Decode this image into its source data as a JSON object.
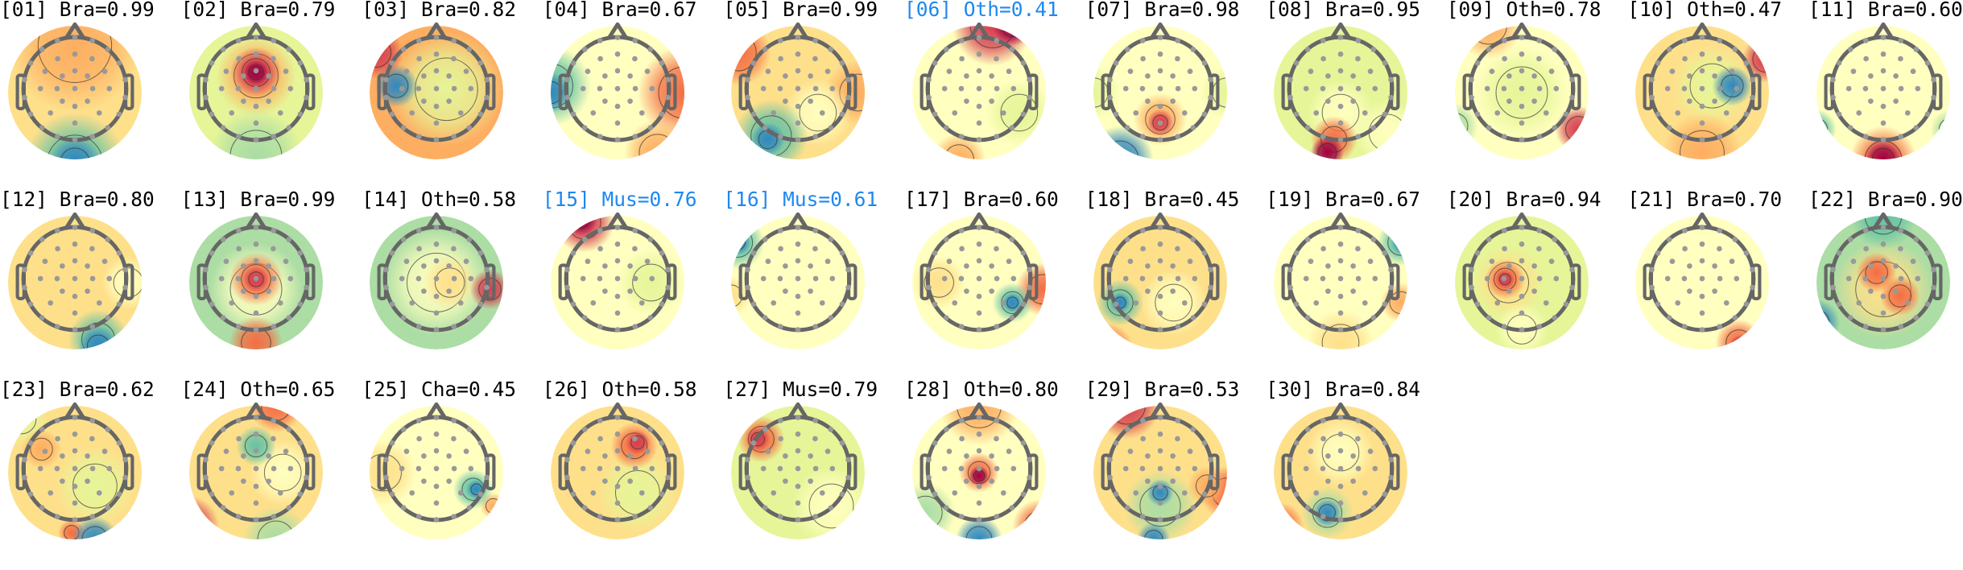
{
  "chart_data": {
    "type": "heatmap",
    "colormap": "Spectral_r",
    "highlight_color": "#1e88f0",
    "components": [
      {
        "title": "[01] Bra=0.99",
        "label": "Bra",
        "prob": 0.99,
        "highlighted": false
      },
      {
        "title": "[02] Bra=0.79",
        "label": "Bra",
        "prob": 0.79,
        "highlighted": false
      },
      {
        "title": "[03] Bra=0.82",
        "label": "Bra",
        "prob": 0.82,
        "highlighted": false
      },
      {
        "title": "[04] Bra=0.67",
        "label": "Bra",
        "prob": 0.67,
        "highlighted": false
      },
      {
        "title": "[05] Bra=0.99",
        "label": "Bra",
        "prob": 0.99,
        "highlighted": false
      },
      {
        "title": "[06] Oth=0.41",
        "label": "Oth",
        "prob": 0.41,
        "highlighted": true
      },
      {
        "title": "[07] Bra=0.98",
        "label": "Bra",
        "prob": 0.98,
        "highlighted": false
      },
      {
        "title": "[08] Bra=0.95",
        "label": "Bra",
        "prob": 0.95,
        "highlighted": false
      },
      {
        "title": "[09] Oth=0.78",
        "label": "Oth",
        "prob": 0.78,
        "highlighted": false
      },
      {
        "title": "[10] Oth=0.47",
        "label": "Oth",
        "prob": 0.47,
        "highlighted": false
      },
      {
        "title": "[11] Bra=0.60",
        "label": "Bra",
        "prob": 0.6,
        "highlighted": false
      },
      {
        "title": "[12] Bra=0.80",
        "label": "Bra",
        "prob": 0.8,
        "highlighted": false
      },
      {
        "title": "[13] Bra=0.99",
        "label": "Bra",
        "prob": 0.99,
        "highlighted": false
      },
      {
        "title": "[14] Oth=0.58",
        "label": "Oth",
        "prob": 0.58,
        "highlighted": false
      },
      {
        "title": "[15] Mus=0.76",
        "label": "Mus",
        "prob": 0.76,
        "highlighted": true
      },
      {
        "title": "[16] Mus=0.61",
        "label": "Mus",
        "prob": 0.61,
        "highlighted": true
      },
      {
        "title": "[17] Bra=0.60",
        "label": "Bra",
        "prob": 0.6,
        "highlighted": false
      },
      {
        "title": "[18] Bra=0.45",
        "label": "Bra",
        "prob": 0.45,
        "highlighted": false
      },
      {
        "title": "[19] Bra=0.67",
        "label": "Bra",
        "prob": 0.67,
        "highlighted": false
      },
      {
        "title": "[20] Bra=0.94",
        "label": "Bra",
        "prob": 0.94,
        "highlighted": false
      },
      {
        "title": "[21] Bra=0.70",
        "label": "Bra",
        "prob": 0.7,
        "highlighted": false
      },
      {
        "title": "[22] Bra=0.90",
        "label": "Bra",
        "prob": 0.9,
        "highlighted": false
      },
      {
        "title": "[23] Bra=0.62",
        "label": "Bra",
        "prob": 0.62,
        "highlighted": false
      },
      {
        "title": "[24] Oth=0.65",
        "label": "Oth",
        "prob": 0.65,
        "highlighted": false
      },
      {
        "title": "[25] Cha=0.45",
        "label": "Cha",
        "prob": 0.45,
        "highlighted": false
      },
      {
        "title": "[26] Oth=0.58",
        "label": "Oth",
        "prob": 0.58,
        "highlighted": false
      },
      {
        "title": "[27] Mus=0.79",
        "label": "Mus",
        "prob": 0.79,
        "highlighted": false
      },
      {
        "title": "[28] Oth=0.80",
        "label": "Oth",
        "prob": 0.8,
        "highlighted": false
      },
      {
        "title": "[29] Bra=0.53",
        "label": "Bra",
        "prob": 0.53,
        "highlighted": false
      },
      {
        "title": "[30] Bra=0.84",
        "label": "Bra",
        "prob": 0.84,
        "highlighted": false
      }
    ]
  }
}
